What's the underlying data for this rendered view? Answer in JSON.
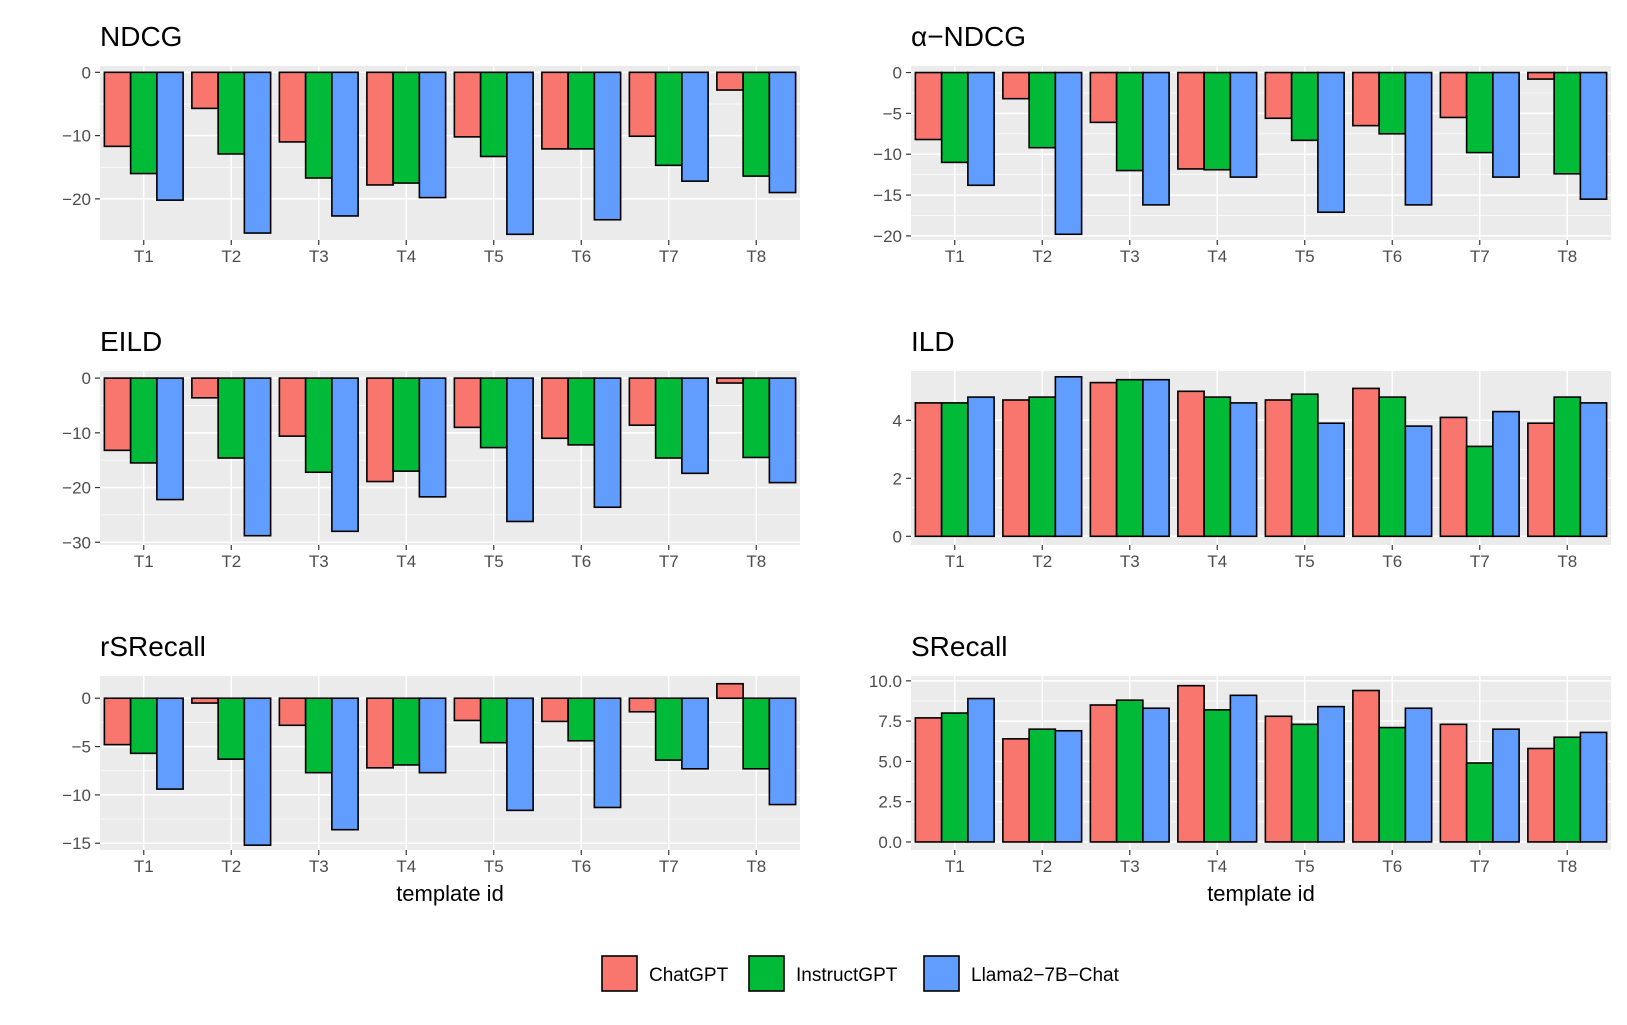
{
  "legend": {
    "entries": [
      {
        "name": "ChatGPT",
        "color": "#F8766D"
      },
      {
        "name": "InstructGPT",
        "color": "#00BA38"
      },
      {
        "name": "Llama2−7B−Chat",
        "color": "#619CFF"
      }
    ],
    "placement": "bottom"
  },
  "chart_data": [
    {
      "type": "bar",
      "title": "NDCG",
      "xlabel": "",
      "ylabel": "",
      "categories": [
        "T1",
        "T2",
        "T3",
        "T4",
        "T5",
        "T6",
        "T7",
        "T8"
      ],
      "ylim": [
        -26.5,
        1
      ],
      "yticks": [
        0,
        -10,
        -20
      ],
      "ytick_labels": [
        "0",
        "−10",
        "−20"
      ],
      "grid": true,
      "series": [
        {
          "name": "ChatGPT",
          "values": [
            -11.7,
            -5.7,
            -11.0,
            -17.8,
            -10.2,
            -12.1,
            -10.1,
            -2.8
          ]
        },
        {
          "name": "InstructGPT",
          "values": [
            -16.0,
            -12.9,
            -16.7,
            -17.5,
            -13.3,
            -12.1,
            -14.7,
            -16.4
          ]
        },
        {
          "name": "Llama2−7B−Chat",
          "values": [
            -20.2,
            -25.4,
            -22.7,
            -19.8,
            -25.6,
            -23.3,
            -17.2,
            -19.0
          ]
        }
      ]
    },
    {
      "type": "bar",
      "title": "α−NDCG",
      "xlabel": "",
      "ylabel": "",
      "categories": [
        "T1",
        "T2",
        "T3",
        "T4",
        "T5",
        "T6",
        "T7",
        "T8"
      ],
      "ylim": [
        -20.5,
        0.8
      ],
      "yticks": [
        0,
        -5,
        -10,
        -15,
        -20
      ],
      "ytick_labels": [
        "0",
        "−5",
        "−10",
        "−15",
        "−20"
      ],
      "grid": true,
      "series": [
        {
          "name": "ChatGPT",
          "values": [
            -8.2,
            -3.2,
            -6.1,
            -11.8,
            -5.6,
            -6.5,
            -5.5,
            -0.8
          ]
        },
        {
          "name": "InstructGPT",
          "values": [
            -11.0,
            -9.2,
            -12.0,
            -11.9,
            -8.3,
            -7.5,
            -9.8,
            -12.4
          ]
        },
        {
          "name": "Llama2−7B−Chat",
          "values": [
            -13.8,
            -19.8,
            -16.2,
            -12.8,
            -17.1,
            -16.2,
            -12.8,
            -15.5
          ]
        }
      ]
    },
    {
      "type": "bar",
      "title": "EILD",
      "xlabel": "",
      "ylabel": "",
      "categories": [
        "T1",
        "T2",
        "T3",
        "T4",
        "T5",
        "T6",
        "T7",
        "T8"
      ],
      "ylim": [
        -30.5,
        1.3
      ],
      "yticks": [
        0,
        -10,
        -20,
        -30
      ],
      "ytick_labels": [
        "0",
        "−10",
        "−20",
        "−30"
      ],
      "grid": true,
      "series": [
        {
          "name": "ChatGPT",
          "values": [
            -13.2,
            -3.6,
            -10.6,
            -18.9,
            -9.0,
            -11.0,
            -8.6,
            -0.9
          ]
        },
        {
          "name": "InstructGPT",
          "values": [
            -15.5,
            -14.6,
            -17.2,
            -17.0,
            -12.7,
            -12.2,
            -14.6,
            -14.5
          ]
        },
        {
          "name": "Llama2−7B−Chat",
          "values": [
            -22.2,
            -28.8,
            -28.0,
            -21.7,
            -26.2,
            -23.6,
            -17.4,
            -19.1
          ]
        }
      ]
    },
    {
      "type": "bar",
      "title": "ILD",
      "xlabel": "",
      "ylabel": "",
      "categories": [
        "T1",
        "T2",
        "T3",
        "T4",
        "T5",
        "T6",
        "T7",
        "T8"
      ],
      "ylim": [
        -0.3,
        5.7
      ],
      "yticks": [
        0,
        2,
        4
      ],
      "ytick_labels": [
        "0",
        "2",
        "4"
      ],
      "grid": true,
      "series": [
        {
          "name": "ChatGPT",
          "values": [
            4.6,
            4.7,
            5.3,
            5.0,
            4.7,
            5.1,
            4.1,
            3.9
          ]
        },
        {
          "name": "InstructGPT",
          "values": [
            4.6,
            4.8,
            5.4,
            4.8,
            4.9,
            4.8,
            3.1,
            4.8
          ]
        },
        {
          "name": "Llama2−7B−Chat",
          "values": [
            4.8,
            5.5,
            5.4,
            4.6,
            3.9,
            3.8,
            4.3,
            4.6
          ]
        }
      ]
    },
    {
      "type": "bar",
      "title": "rSRecall",
      "xlabel": "template id",
      "ylabel": "",
      "categories": [
        "T1",
        "T2",
        "T3",
        "T4",
        "T5",
        "T6",
        "T7",
        "T8"
      ],
      "ylim": [
        -15.7,
        2.3
      ],
      "yticks": [
        0,
        -5,
        -10,
        -15
      ],
      "ytick_labels": [
        "0",
        "−5",
        "−10",
        "−15"
      ],
      "grid": true,
      "series": [
        {
          "name": "ChatGPT",
          "values": [
            -4.8,
            -0.5,
            -2.8,
            -7.2,
            -2.3,
            -2.4,
            -1.4,
            1.5
          ]
        },
        {
          "name": "InstructGPT",
          "values": [
            -5.7,
            -6.3,
            -7.7,
            -6.9,
            -4.6,
            -4.4,
            -6.4,
            -7.3
          ]
        },
        {
          "name": "Llama2−7B−Chat",
          "values": [
            -9.4,
            -15.2,
            -13.6,
            -7.7,
            -11.6,
            -11.3,
            -7.3,
            -11.0
          ]
        }
      ]
    },
    {
      "type": "bar",
      "title": "SRecall",
      "xlabel": "template id",
      "ylabel": "",
      "categories": [
        "T1",
        "T2",
        "T3",
        "T4",
        "T5",
        "T6",
        "T7",
        "T8"
      ],
      "ylim": [
        -0.5,
        10.3
      ],
      "yticks": [
        0,
        2.5,
        5,
        7.5,
        10
      ],
      "ytick_labels": [
        "0.0",
        "2.5",
        "5.0",
        "7.5",
        "10.0"
      ],
      "grid": true,
      "series": [
        {
          "name": "ChatGPT",
          "values": [
            7.7,
            6.4,
            8.5,
            9.7,
            7.8,
            9.4,
            7.3,
            5.8
          ]
        },
        {
          "name": "InstructGPT",
          "values": [
            8.0,
            7.0,
            8.8,
            8.2,
            7.3,
            7.1,
            4.9,
            6.5
          ]
        },
        {
          "name": "Llama2−7B−Chat",
          "values": [
            8.9,
            6.9,
            8.3,
            9.1,
            8.4,
            8.3,
            7.0,
            6.8
          ]
        }
      ]
    }
  ]
}
